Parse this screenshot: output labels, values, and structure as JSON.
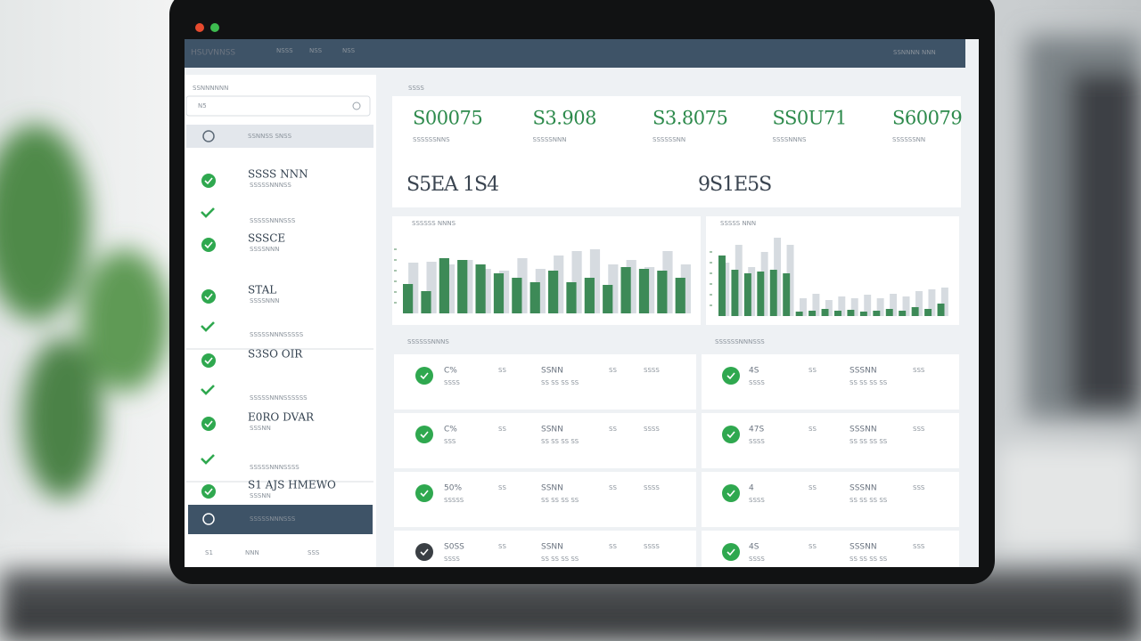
{
  "header": {
    "title": "HSUVNNSS",
    "tabs": [
      "NSSS",
      "NSS",
      "NSS"
    ],
    "right": "SSNNNN NNN"
  },
  "sidebar": {
    "section": "SSNNNNNN",
    "search": "N5",
    "top_item": "SSNNSS SNSS",
    "items": [
      {
        "label": "SSSS NNN",
        "sub": "SSSSSNNNSS"
      },
      {
        "label": "",
        "sub": "SSSSSNNNSSS"
      },
      {
        "label": "SSSCE",
        "sub": "SSSSNNN"
      },
      {
        "label": "STAL",
        "sub": "SSSSNNN"
      },
      {
        "label": "",
        "sub": "SSSSSNNNSSSSS"
      },
      {
        "label": "S3SO OIR",
        "sub": ""
      },
      {
        "label": "",
        "sub": "SSSSSNNNSSSSSS"
      },
      {
        "label": "E0RO DVAR",
        "sub": "SSSNN"
      },
      {
        "label": "",
        "sub": "SSSSSNNNSSSS"
      },
      {
        "label": "S1 AJS HMEWO",
        "sub": "SSSNN"
      }
    ],
    "selected": "SSSSSNNNSSS",
    "footer": [
      "S1",
      "NNN",
      "SSS"
    ]
  },
  "kpi": {
    "label": "SSSS",
    "values": [
      {
        "value": "S00075",
        "sub": "SSSSSSNNS"
      },
      {
        "value": "S3.908",
        "sub": "SSSSSNNN"
      },
      {
        "value": "S3.8075",
        "sub": "SSSSSSNN"
      },
      {
        "value": "SS0U71",
        "sub": "SSSSNNNS"
      },
      {
        "value": "S60079",
        "sub": "SSSSSSNN"
      }
    ],
    "secondary": [
      "S5EA 1S4",
      "9S1E5S"
    ]
  },
  "chart_data": [
    {
      "type": "bar",
      "title": "SSSSSS NNNS",
      "categories": [
        null,
        null,
        null,
        null,
        null,
        null,
        null,
        null,
        null,
        null,
        null,
        null,
        null,
        null,
        null,
        null
      ],
      "series": [
        {
          "name": null,
          "color": "#d6dbe0",
          "values": [
            57,
            58,
            55,
            60,
            50,
            48,
            62,
            50,
            65,
            70,
            72,
            55,
            60,
            52,
            70,
            55
          ]
        },
        {
          "name": null,
          "color": "#3d8a57",
          "values": [
            33,
            25,
            62,
            60,
            55,
            45,
            40,
            35,
            48,
            35,
            40,
            32,
            52,
            50,
            48,
            40
          ]
        }
      ]
    },
    {
      "type": "bar",
      "title": "SSSSS NNN",
      "categories": [
        null,
        null,
        null,
        null,
        null,
        null,
        null,
        null,
        null,
        null,
        null,
        null,
        null,
        null,
        null,
        null,
        null,
        null
      ],
      "series": [
        {
          "name": null,
          "color": "#d6dbe0",
          "values": [
            60,
            80,
            55,
            72,
            88,
            80,
            20,
            25,
            18,
            22,
            20,
            24,
            20,
            25,
            22,
            28,
            30,
            32
          ]
        },
        {
          "name": null,
          "color": "#3d8a57",
          "values": [
            68,
            52,
            48,
            50,
            52,
            48,
            5,
            6,
            8,
            6,
            7,
            5,
            6,
            8,
            6,
            10,
            8,
            14
          ]
        }
      ]
    }
  ],
  "tables": [
    {
      "title": "SSSSSSNNNS",
      "rows": [
        {
          "main": "C%",
          "sub": "SSSS",
          "c2": "SS",
          "c3": "SSNN",
          "c3sub": "SS SS SS SS",
          "c4": "SS",
          "c5": "SSSS",
          "color": "#2fa84f"
        },
        {
          "main": "C%",
          "sub": "SSS",
          "c2": "SS",
          "c3": "SSNN",
          "c3sub": "SS SS SS SS",
          "c4": "SS",
          "c5": "SSSS",
          "color": "#2fa84f"
        },
        {
          "main": "50%",
          "sub": "SSSSS",
          "c2": "SS",
          "c3": "SSNN",
          "c3sub": "SS SS SS SS",
          "c4": "SS",
          "c5": "SSSS",
          "color": "#e0506a"
        },
        {
          "main": "S0SS",
          "sub": "SSSS",
          "c2": "SS",
          "c3": "SSNN",
          "c3sub": "SS SS SS SS",
          "c4": "SS",
          "c5": "SSSS",
          "color": "#e0506a"
        }
      ]
    },
    {
      "title": "SSSSSSNNNSSS",
      "rows": [
        {
          "main": "4S",
          "sub": "SSSS",
          "c2": "SS",
          "c3": "SSSNN",
          "c3sub": "SS SS SS SS",
          "c4": "SSS",
          "c5": "",
          "color": "#2fa84f"
        },
        {
          "main": "47S",
          "sub": "SSSS",
          "c2": "SS",
          "c3": "SSSNN",
          "c3sub": "SS SS SS SS",
          "c4": "SSS",
          "c5": "",
          "color": "#2fa84f"
        },
        {
          "main": "4",
          "sub": "SSSS",
          "c2": "SS",
          "c3": "SSSNN",
          "c3sub": "SS SS SS SS",
          "c4": "SSS",
          "c5": "",
          "color": "#2fa84f"
        },
        {
          "main": "4S",
          "sub": "SSSS",
          "c2": "SS",
          "c3": "SSSNN",
          "c3sub": "SS SS SS SS",
          "c4": "SSS",
          "c5": "",
          "color": "#2fa84f"
        }
      ]
    }
  ]
}
